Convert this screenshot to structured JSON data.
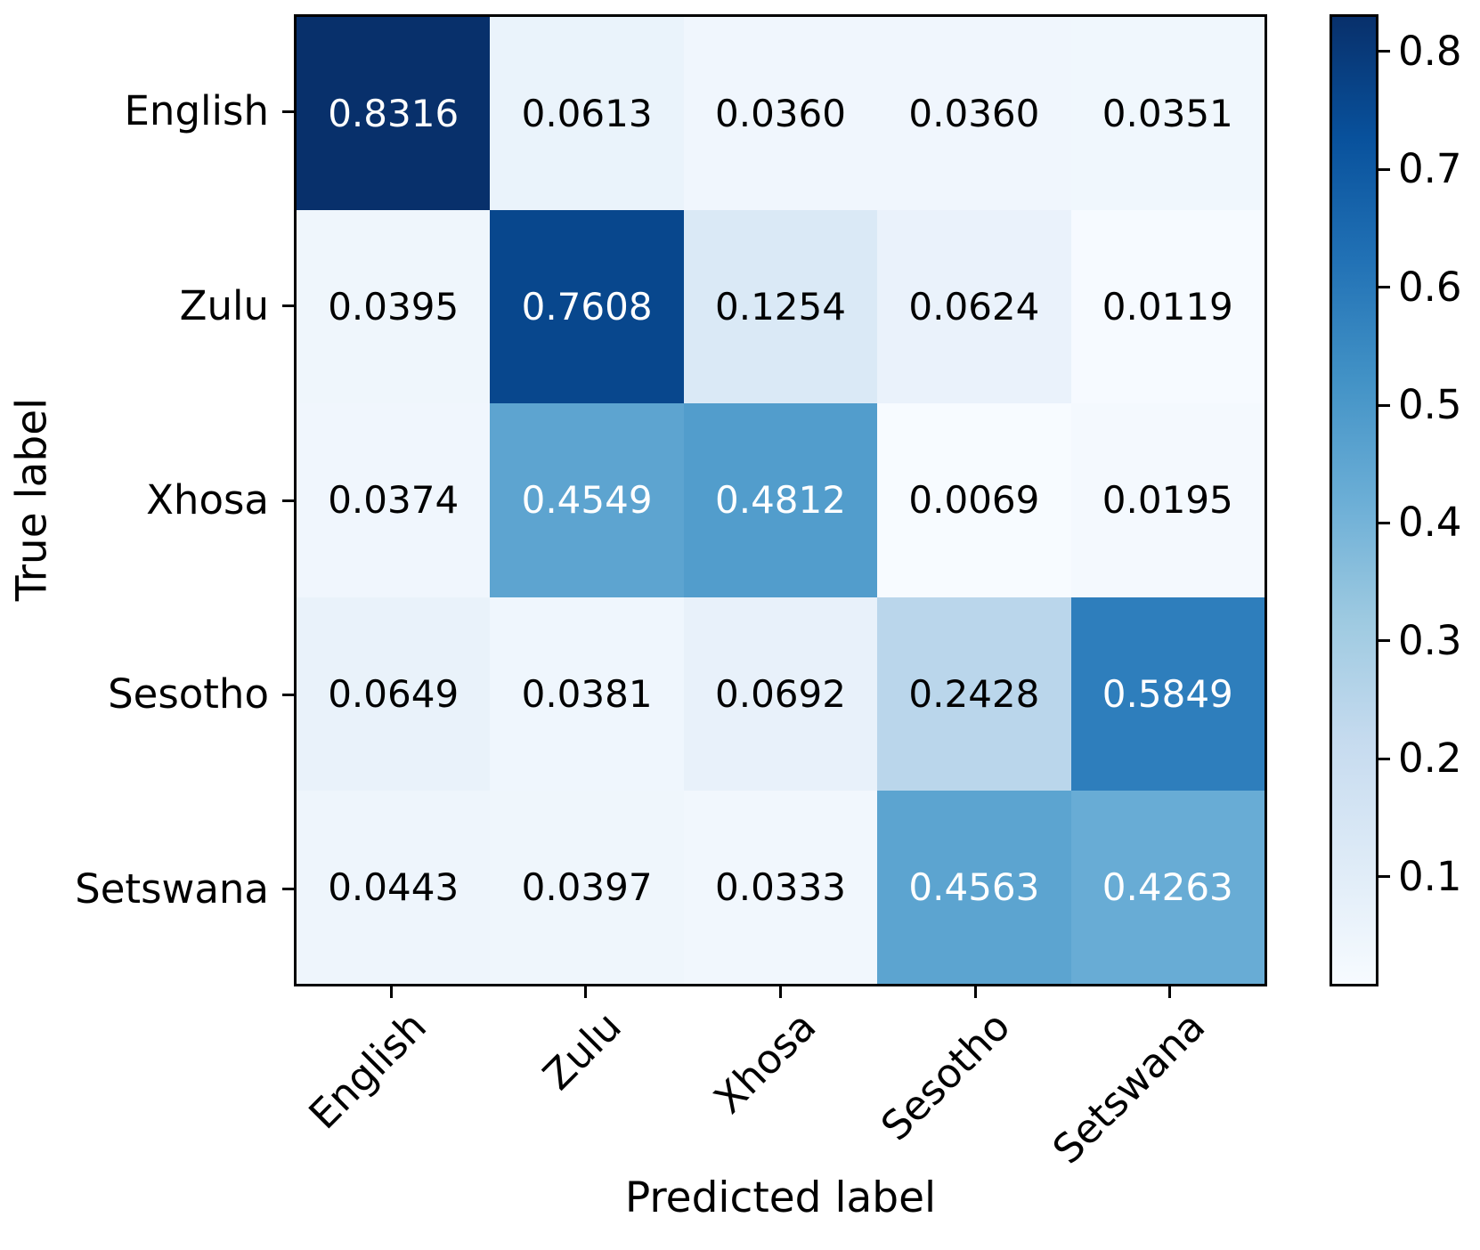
{
  "chart_data": {
    "type": "heatmap",
    "title": "",
    "xlabel": "Predicted label",
    "ylabel": "True label",
    "x_categories": [
      "English",
      "Zulu",
      "Xhosa",
      "Sesotho",
      "Setswana"
    ],
    "y_categories": [
      "English",
      "Zulu",
      "Xhosa",
      "Sesotho",
      "Setswana"
    ],
    "values": [
      [
        0.8316,
        0.0613,
        0.036,
        0.036,
        0.0351
      ],
      [
        0.0395,
        0.7608,
        0.1254,
        0.0624,
        0.0119
      ],
      [
        0.0374,
        0.4549,
        0.4812,
        0.0069,
        0.0195
      ],
      [
        0.0649,
        0.0381,
        0.0692,
        0.2428,
        0.5849
      ],
      [
        0.0443,
        0.0397,
        0.0333,
        0.4563,
        0.4263
      ]
    ],
    "cell_labels": [
      [
        "0.8316",
        "0.0613",
        "0.0360",
        "0.0360",
        "0.0351"
      ],
      [
        "0.0395",
        "0.7608",
        "0.1254",
        "0.0624",
        "0.0119"
      ],
      [
        "0.0374",
        "0.4549",
        "0.4812",
        "0.0069",
        "0.0195"
      ],
      [
        "0.0649",
        "0.0381",
        "0.0692",
        "0.2428",
        "0.5849"
      ],
      [
        "0.0443",
        "0.0397",
        "0.0333",
        "0.4563",
        "0.4263"
      ]
    ],
    "vmin": 0.0069,
    "vmax": 0.8316,
    "colormap": "Blues",
    "colormap_stops": [
      "#f7fbff",
      "#deebf7",
      "#c6dbef",
      "#9ecae1",
      "#6baed6",
      "#4292c6",
      "#2171b5",
      "#08519c",
      "#08306b"
    ],
    "text_colors": {
      "light": "#ffffff",
      "dark": "#000000"
    },
    "colorbar_ticks": [
      "0.1",
      "0.2",
      "0.3",
      "0.4",
      "0.5",
      "0.6",
      "0.7",
      "0.8"
    ],
    "legend_position": "right",
    "grid": false
  }
}
